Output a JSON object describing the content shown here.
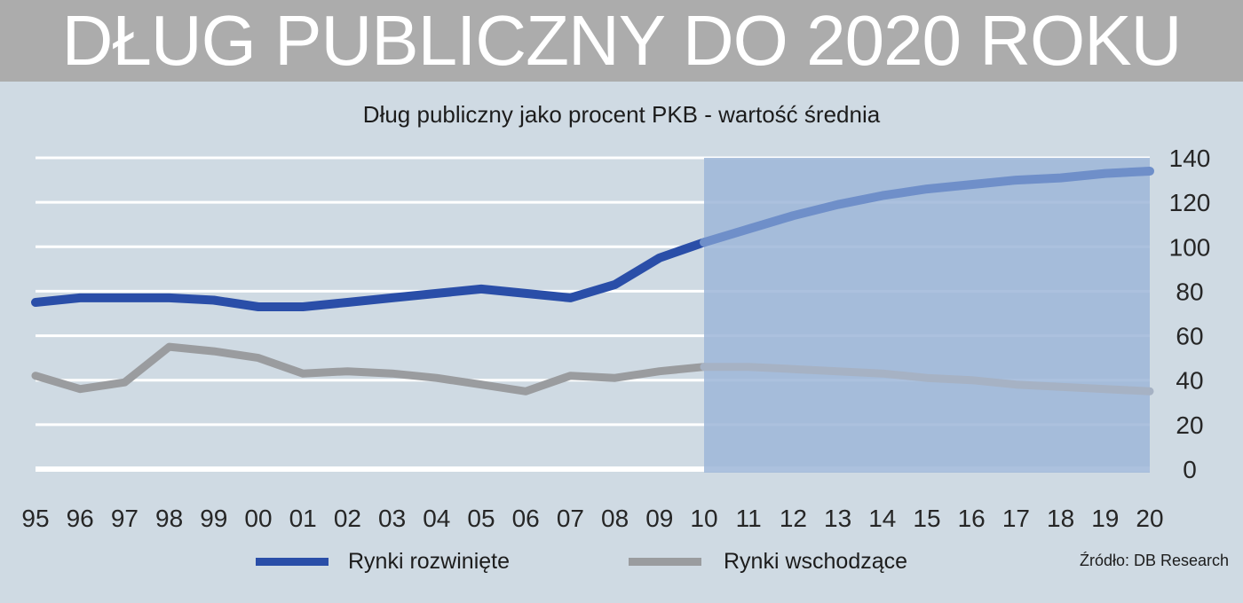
{
  "header": {
    "title": "DŁUG PUBLICZNY DO 2020 ROKU"
  },
  "colors": {
    "banner": "#acacac",
    "background": "#cfdae3",
    "forecast_shade": "#9eb6d8",
    "developed": "#2a4ea8",
    "developed_forecast": "#6f8fc9",
    "emerging": "#9a9c9f",
    "emerging_forecast": "#a6b2c4"
  },
  "chart_data": {
    "type": "line",
    "title": "Dług publiczny jako procent PKB - wartość średnia",
    "categories": [
      "95",
      "96",
      "97",
      "98",
      "99",
      "00",
      "01",
      "02",
      "03",
      "04",
      "05",
      "06",
      "07",
      "08",
      "09",
      "10",
      "11",
      "12",
      "13",
      "14",
      "15",
      "16",
      "17",
      "18",
      "19",
      "20"
    ],
    "series": [
      {
        "name": "Rynki rozwinięte",
        "values": [
          75,
          77,
          77,
          77,
          76,
          73,
          73,
          75,
          77,
          79,
          81,
          79,
          77,
          83,
          95,
          102,
          108,
          114,
          119,
          123,
          126,
          128,
          130,
          131,
          133,
          134
        ]
      },
      {
        "name": "Rynki wschodzące",
        "values": [
          42,
          36,
          39,
          55,
          53,
          50,
          43,
          44,
          43,
          41,
          38,
          35,
          42,
          41,
          44,
          46,
          46,
          45,
          44,
          43,
          41,
          40,
          38,
          37,
          36,
          35
        ]
      }
    ],
    "y_axis": {
      "ylim": [
        0,
        140
      ],
      "ticks": [
        0,
        20,
        40,
        60,
        80,
        100,
        120,
        140
      ],
      "position": "right"
    },
    "forecast_start": "10",
    "grid": true,
    "legend": "bottom",
    "source": "Źródło: DB Research"
  }
}
